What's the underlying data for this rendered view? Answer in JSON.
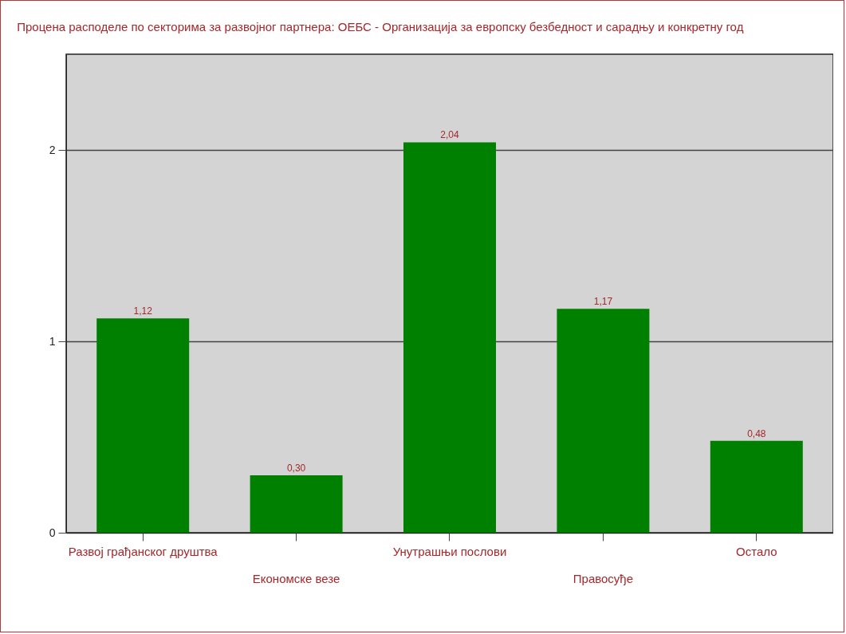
{
  "chart_data": {
    "type": "bar",
    "title": "Процена расподеле по секторима за развојног партнера: ОЕБС - Организација за европску безбедност и сарадњу и конкретну год",
    "categories": [
      "Развој грађанског друштва",
      "Економске везе",
      "Унутрашњи послови",
      "Правосуђе",
      "Остало"
    ],
    "values": [
      1.12,
      0.3,
      2.04,
      1.17,
      0.48
    ],
    "value_labels": [
      "1,12",
      "0,30",
      "2,04",
      "1,17",
      "0,48"
    ],
    "color": "#008000",
    "ylim": [
      0,
      2.5
    ],
    "yticks": [
      0,
      1,
      2
    ],
    "grid": "y"
  }
}
